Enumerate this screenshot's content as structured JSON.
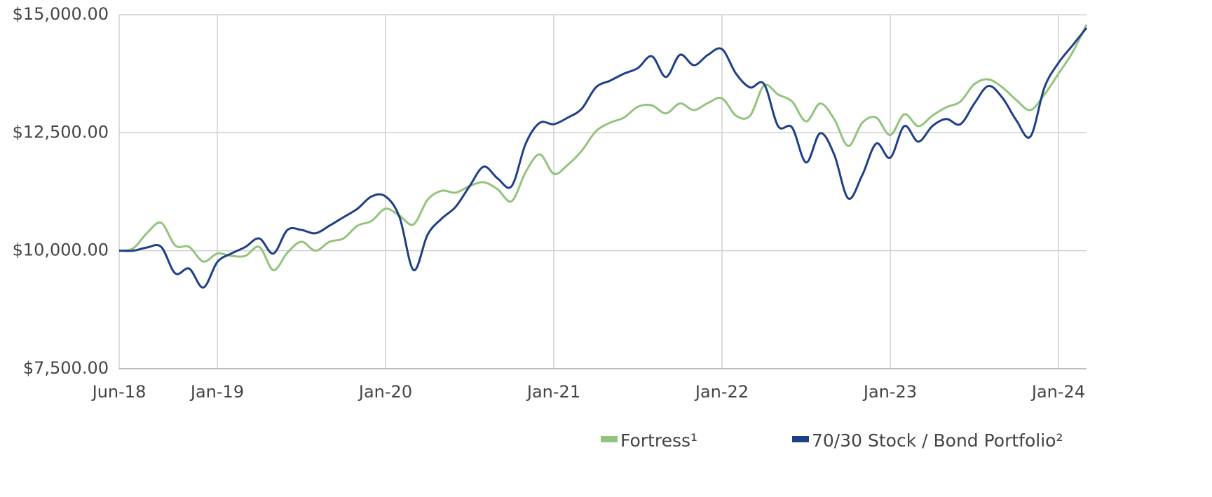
{
  "chart_data": {
    "type": "line",
    "categories": [
      "Jun-18",
      null,
      null,
      null,
      null,
      null,
      null,
      "Jan-19",
      null,
      null,
      null,
      null,
      null,
      null,
      null,
      null,
      null,
      null,
      null,
      "Jan-20",
      null,
      null,
      null,
      null,
      null,
      null,
      null,
      null,
      null,
      null,
      null,
      "Jan-21",
      null,
      null,
      null,
      null,
      null,
      null,
      null,
      null,
      null,
      null,
      null,
      "Jan-22",
      null,
      null,
      null,
      null,
      null,
      null,
      null,
      null,
      null,
      null,
      null,
      "Jan-23",
      null,
      null,
      null,
      null,
      null,
      null,
      null,
      null,
      null,
      null,
      null,
      "Jan-24",
      null,
      null
    ],
    "series": [
      {
        "name": "Fortress¹",
        "color": "#93c47d",
        "values": [
          10000,
          10050,
          10380,
          10590,
          10110,
          10080,
          9770,
          9940,
          9890,
          9890,
          10080,
          9590,
          9960,
          10190,
          10000,
          10190,
          10260,
          10530,
          10630,
          10890,
          10740,
          10560,
          11080,
          11270,
          11230,
          11370,
          11450,
          11300,
          11050,
          11670,
          12040,
          11630,
          11820,
          12120,
          12530,
          12710,
          12820,
          13050,
          13080,
          12910,
          13120,
          12980,
          13130,
          13230,
          12860,
          12860,
          13500,
          13310,
          13160,
          12740,
          13120,
          12790,
          12220,
          12710,
          12820,
          12450,
          12890,
          12640,
          12860,
          13040,
          13160,
          13530,
          13630,
          13460,
          13190,
          12980,
          13310,
          13750,
          14200,
          14790
        ]
      },
      {
        "name": "70/30 Stock / Bond Portfolio²",
        "color": "#1f3f86",
        "values": [
          10000,
          10000,
          10070,
          10080,
          9520,
          9620,
          9220,
          9760,
          9940,
          10080,
          10260,
          9940,
          10440,
          10440,
          10370,
          10530,
          10710,
          10890,
          11150,
          11150,
          10710,
          9590,
          10340,
          10680,
          10930,
          11370,
          11780,
          11530,
          11370,
          12270,
          12710,
          12680,
          12820,
          13010,
          13460,
          13600,
          13750,
          13870,
          14120,
          13680,
          14150,
          13930,
          14150,
          14270,
          13750,
          13460,
          13530,
          12640,
          12610,
          11870,
          12490,
          12040,
          11110,
          11600,
          12270,
          11970,
          12640,
          12310,
          12640,
          12790,
          12680,
          13120,
          13490,
          13240,
          12760,
          12420,
          13460,
          13980,
          14350,
          14720
        ]
      }
    ],
    "ylim": [
      7500,
      15000
    ],
    "yticks": [
      {
        "value": 7500,
        "label": "$7,500.00"
      },
      {
        "value": 10000,
        "label": "$10,000.00"
      },
      {
        "value": 12500,
        "label": "$12,500.00"
      },
      {
        "value": 15000,
        "label": "$15,000.00"
      }
    ],
    "grid": true
  }
}
